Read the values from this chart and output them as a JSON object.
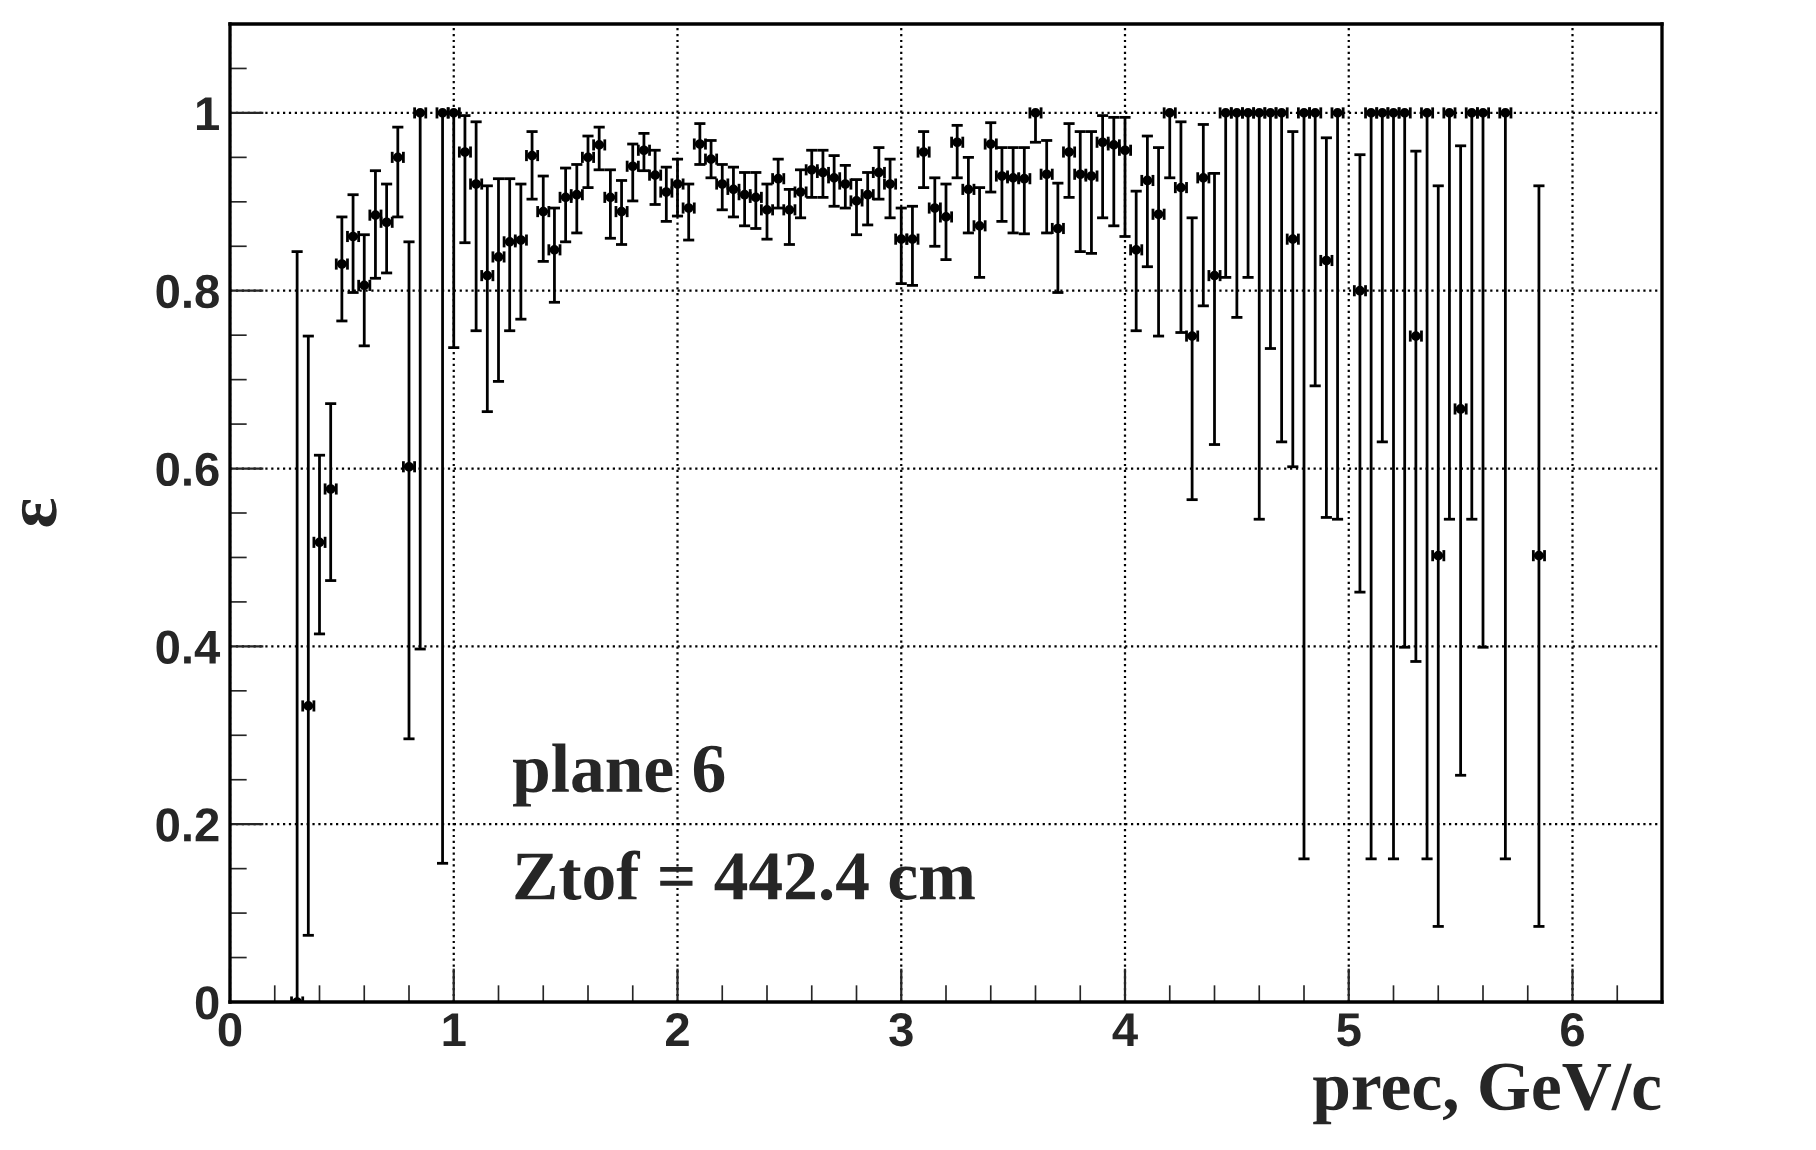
{
  "chart_data": {
    "type": "scatter",
    "xlabel": "prec, GeV/c",
    "ylabel": "ε",
    "annotations": [
      "plane 6",
      "Ztof = 442.4 cm"
    ],
    "xlim": [
      0,
      6.4
    ],
    "ylim": [
      0,
      1.1
    ],
    "xticks": [
      0,
      1,
      2,
      3,
      4,
      5,
      6
    ],
    "yticks": [
      0,
      0.2,
      0.4,
      0.6,
      0.8,
      1
    ],
    "grid": true,
    "marker": "circle",
    "series": [
      {
        "color": "#000000",
        "x": [
          0.3,
          0.35,
          0.4,
          0.45,
          0.5,
          0.55,
          0.6,
          0.65,
          0.7,
          0.75,
          0.8,
          0.85,
          0.95,
          1.0,
          1.05,
          1.1,
          1.15,
          1.2,
          1.25,
          1.3,
          1.35,
          1.4,
          1.45,
          1.5,
          1.55,
          1.6,
          1.65,
          1.7,
          1.75,
          1.8,
          1.85,
          1.9,
          1.95,
          2.0,
          2.05,
          2.1,
          2.15,
          2.2,
          2.25,
          2.3,
          2.35,
          2.4,
          2.45,
          2.5,
          2.55,
          2.6,
          2.65,
          2.7,
          2.75,
          2.8,
          2.85,
          2.9,
          2.95,
          3.0,
          3.05,
          3.1,
          3.15,
          3.2,
          3.25,
          3.3,
          3.35,
          3.4,
          3.45,
          3.5,
          3.55,
          3.6,
          3.65,
          3.7,
          3.75,
          3.8,
          3.85,
          3.9,
          3.95,
          4.0,
          4.05,
          4.1,
          4.15,
          4.2,
          4.25,
          4.3,
          4.35,
          4.4,
          4.45,
          4.5,
          4.55,
          4.6,
          4.65,
          4.7,
          4.75,
          4.8,
          4.85,
          4.9,
          4.95,
          5.05,
          5.1,
          5.15,
          5.2,
          5.25,
          5.3,
          5.35,
          5.4,
          5.45,
          5.5,
          5.55,
          5.6,
          5.7,
          5.85
        ],
        "values": [
          0,
          0.333,
          0.517,
          0.577,
          0.83,
          0.861,
          0.806,
          0.885,
          0.877,
          0.95,
          0.602,
          1,
          1,
          1,
          0.956,
          0.92,
          0.817,
          0.838,
          0.855,
          0.857,
          0.952,
          0.889,
          0.846,
          0.905,
          0.908,
          0.95,
          0.964,
          0.905,
          0.889,
          0.94,
          0.958,
          0.93,
          0.911,
          0.92,
          0.893,
          0.965,
          0.948,
          0.92,
          0.914,
          0.908,
          0.905,
          0.891,
          0.926,
          0.891,
          0.911,
          0.936,
          0.933,
          0.927,
          0.92,
          0.901,
          0.908,
          0.933,
          0.92,
          0.858,
          0.858,
          0.956,
          0.893,
          0.883,
          0.967,
          0.914,
          0.873,
          0.965,
          0.929,
          0.927,
          0.926,
          1,
          0.931,
          0.87,
          0.956,
          0.931,
          0.929,
          0.967,
          0.964,
          0.958,
          0.846,
          0.924,
          0.886,
          1,
          0.916,
          0.749,
          0.927,
          0.817,
          1,
          1,
          1,
          1,
          1,
          1,
          0.858,
          1,
          1,
          0.834,
          1,
          0.8,
          1,
          1,
          1,
          1,
          0.749,
          1,
          0.502,
          1,
          0.667,
          1,
          1,
          1,
          0.502
        ],
        "errors": [
          [
            0,
            0.844
          ],
          [
            0.075,
            0.749
          ],
          [
            0.414,
            0.615
          ],
          [
            0.474,
            0.673
          ],
          [
            0.766,
            0.883
          ],
          [
            0.798,
            0.908
          ],
          [
            0.738,
            0.863
          ],
          [
            0.814,
            0.935
          ],
          [
            0.82,
            0.92
          ],
          [
            0.883,
            0.984
          ],
          [
            0.296,
            0.855
          ],
          [
            0.397,
            1
          ],
          [
            0.156,
            1
          ],
          [
            0.736,
            1
          ],
          [
            0.854,
            0.997
          ],
          [
            0.755,
            0.99
          ],
          [
            0.664,
            0.918
          ],
          [
            0.698,
            0.926
          ],
          [
            0.755,
            0.926
          ],
          [
            0.768,
            0.92
          ],
          [
            0.903,
            0.979
          ],
          [
            0.833,
            0.929
          ],
          [
            0.787,
            0.893
          ],
          [
            0.855,
            0.938
          ],
          [
            0.865,
            0.942
          ],
          [
            0.916,
            0.974
          ],
          [
            0.936,
            0.984
          ],
          [
            0.859,
            0.936
          ],
          [
            0.852,
            0.924
          ],
          [
            0.901,
            0.965
          ],
          [
            0.935,
            0.977
          ],
          [
            0.897,
            0.958
          ],
          [
            0.878,
            0.939
          ],
          [
            0.884,
            0.948
          ],
          [
            0.857,
            0.92
          ],
          [
            0.942,
            0.988
          ],
          [
            0.927,
            0.969
          ],
          [
            0.891,
            0.942
          ],
          [
            0.883,
            0.939
          ],
          [
            0.873,
            0.933
          ],
          [
            0.87,
            0.933
          ],
          [
            0.858,
            0.92
          ],
          [
            0.893,
            0.948
          ],
          [
            0.852,
            0.914
          ],
          [
            0.882,
            0.936
          ],
          [
            0.905,
            0.958
          ],
          [
            0.905,
            0.958
          ],
          [
            0.895,
            0.952
          ],
          [
            0.893,
            0.941
          ],
          [
            0.863,
            0.925
          ],
          [
            0.874,
            0.933
          ],
          [
            0.903,
            0.961
          ],
          [
            0.882,
            0.948
          ],
          [
            0.808,
            0.893
          ],
          [
            0.806,
            0.895
          ],
          [
            0.916,
            0.979
          ],
          [
            0.85,
            0.927
          ],
          [
            0.835,
            0.92
          ],
          [
            0.927,
            0.986
          ],
          [
            0.865,
            0.95
          ],
          [
            0.815,
            0.916
          ],
          [
            0.911,
            0.989
          ],
          [
            0.878,
            0.961
          ],
          [
            0.865,
            0.961
          ],
          [
            0.864,
            0.961
          ],
          [
            0.967,
            1
          ],
          [
            0.865,
            0.969
          ],
          [
            0.798,
            0.921
          ],
          [
            0.905,
            0.988
          ],
          [
            0.844,
            0.979
          ],
          [
            0.842,
            0.979
          ],
          [
            0.882,
            0.997
          ],
          [
            0.873,
            0.995
          ],
          [
            0.861,
            0.995
          ],
          [
            0.755,
            0.912
          ],
          [
            0.827,
            0.974
          ],
          [
            0.749,
            0.961
          ],
          [
            0.927,
            1
          ],
          [
            0.753,
            0.99
          ],
          [
            0.565,
            0.882
          ],
          [
            0.783,
            0.987
          ],
          [
            0.627,
            0.932
          ],
          [
            0.815,
            1
          ],
          [
            0.77,
            1
          ],
          [
            0.815,
            1
          ],
          [
            0.543,
            1
          ],
          [
            0.735,
            1
          ],
          [
            0.63,
            1
          ],
          [
            0.602,
            0.979
          ],
          [
            0.161,
            1
          ],
          [
            0.693,
            1
          ],
          [
            0.545,
            0.972
          ],
          [
            0.543,
            1
          ],
          [
            0.461,
            0.953
          ],
          [
            0.161,
            1
          ],
          [
            0.63,
            1
          ],
          [
            0.161,
            1
          ],
          [
            0.399,
            1
          ],
          [
            0.383,
            0.957
          ],
          [
            0.161,
            1
          ],
          [
            0.085,
            0.918
          ],
          [
            0.543,
            1
          ],
          [
            0.255,
            0.963
          ],
          [
            0.543,
            1
          ],
          [
            0.399,
            1
          ],
          [
            0.161,
            1
          ],
          [
            0.085,
            0.918
          ]
        ],
        "xerrors": [
          0.025,
          0.025,
          0.025,
          0.025,
          0.025,
          0.025,
          0.025,
          0.025,
          0.025,
          0.025,
          0.025,
          0.025,
          0.025,
          0.025,
          0.025,
          0.025,
          0.025,
          0.025,
          0.025,
          0.025,
          0.025,
          0.025,
          0.025,
          0.025,
          0.025,
          0.025,
          0.025,
          0.025,
          0.025,
          0.025,
          0.025,
          0.025,
          0.025,
          0.025,
          0.025,
          0.025,
          0.025,
          0.025,
          0.025,
          0.025,
          0.025,
          0.025,
          0.025,
          0.025,
          0.025,
          0.025,
          0.025,
          0.025,
          0.025,
          0.025,
          0.025,
          0.025,
          0.025,
          0.025,
          0.025,
          0.025,
          0.025,
          0.025,
          0.025,
          0.025,
          0.025,
          0.025,
          0.025,
          0.025,
          0.025,
          0.025,
          0.025,
          0.025,
          0.025,
          0.025,
          0.025,
          0.025,
          0.025,
          0.025,
          0.025,
          0.025,
          0.025,
          0.025,
          0.025,
          0.025,
          0.025,
          0.025,
          0.025,
          0.025,
          0.025,
          0.025,
          0.025,
          0.025,
          0.025,
          0.025,
          0.025,
          0.025,
          0.025,
          0.025,
          0.025,
          0.025,
          0.025,
          0.025,
          0.025,
          0.025,
          0.025,
          0.025,
          0.025,
          0.025,
          0.025,
          0.025,
          0.025
        ]
      }
    ]
  }
}
